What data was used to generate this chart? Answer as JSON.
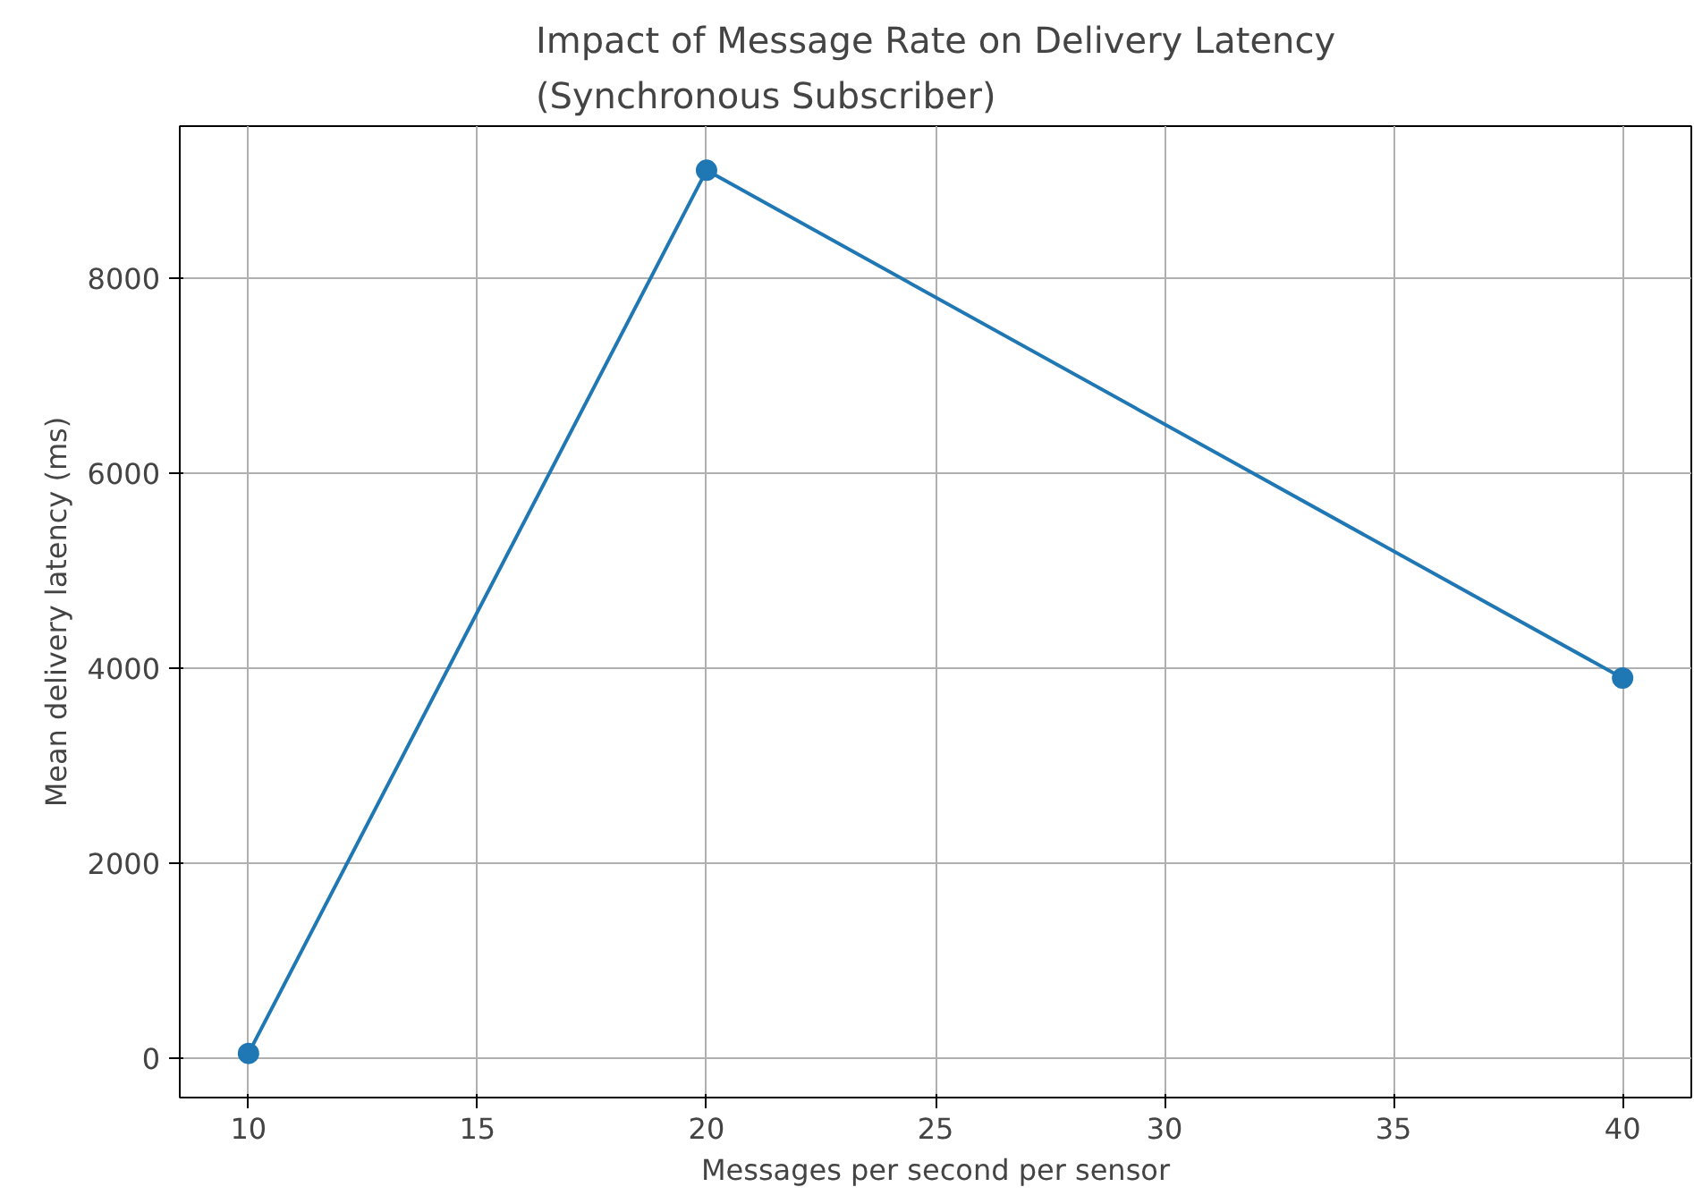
{
  "chart_data": {
    "type": "line",
    "title": "Impact of Message Rate on Delivery Latency\n(Synchronous Subscriber)",
    "xlabel": "Messages per second per sensor",
    "ylabel": "Mean delivery latency (ms)",
    "x": [
      10,
      20,
      40
    ],
    "series": [
      {
        "color": "#1f77b4",
        "values": [
          50,
          9110,
          3900
        ]
      }
    ],
    "xlim": [
      8.5,
      41.5
    ],
    "ylim": [
      -403,
      9563
    ],
    "xticks": [
      10,
      15,
      20,
      25,
      30,
      35,
      40
    ],
    "yticks": [
      0,
      2000,
      4000,
      6000,
      8000
    ],
    "grid": true,
    "marker": "circle",
    "line_style": "solid"
  }
}
